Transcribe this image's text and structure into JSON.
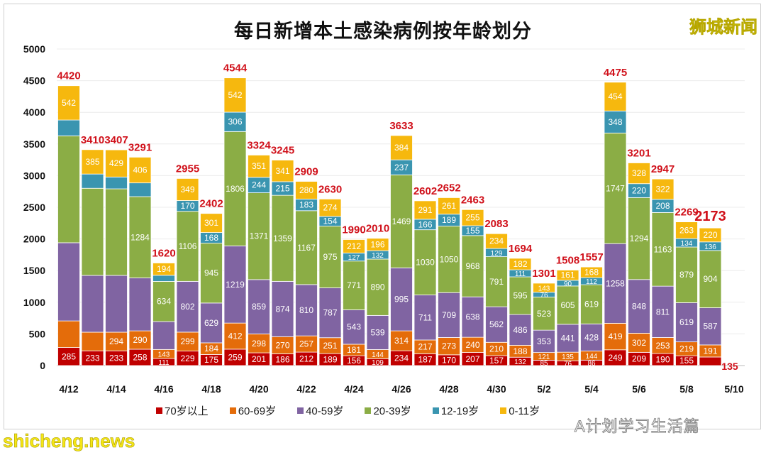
{
  "chart_data": {
    "type": "stacked-bar",
    "title": "每日新增本土感染病例按年龄划分",
    "categories": [
      "4/12",
      "4/13",
      "4/14",
      "4/15",
      "4/16",
      "4/17",
      "4/18",
      "4/19",
      "4/20",
      "4/21",
      "4/22",
      "4/23",
      "4/24",
      "4/25",
      "4/26",
      "4/27",
      "4/28",
      "4/29",
      "4/30",
      "5/1",
      "5/2",
      "5/3",
      "5/4",
      "5/5",
      "5/6",
      "5/7",
      "5/8",
      "5/9"
    ],
    "x_tick_labels": [
      "4/12",
      "4/14",
      "4/16",
      "4/18",
      "4/20",
      "4/22",
      "4/24",
      "4/26",
      "4/28",
      "4/30",
      "5/2",
      "5/4",
      "5/6",
      "5/8",
      "5/10"
    ],
    "y_ticks": [
      0,
      500,
      1000,
      1500,
      2000,
      2500,
      3000,
      3500,
      4000,
      4500,
      5000
    ],
    "ylim": [
      0,
      5000
    ],
    "grid": true,
    "legend_position": "bottom",
    "totals": [
      4420,
      3410,
      3407,
      3291,
      1620,
      2955,
      2402,
      4544,
      3324,
      3245,
      2909,
      2630,
      1990,
      2010,
      3633,
      2602,
      2652,
      2463,
      2083,
      1694,
      1301,
      1508,
      1557,
      4475,
      3201,
      2947,
      2269,
      2173
    ],
    "series": [
      {
        "name": "70岁以上",
        "color": "#c00000",
        "values": [
          285,
          233,
          233,
          258,
          111,
          229,
          175,
          259,
          201,
          186,
          212,
          189,
          156,
          109,
          234,
          187,
          170,
          207,
          157,
          132,
          85,
          76,
          86,
          249,
          209,
          190,
          155,
          135
        ],
        "unlabeled": []
      },
      {
        "name": "60-69岁",
        "color": "#e46c0a",
        "values": [
          420,
          294,
          294,
          290,
          143,
          299,
          184,
          412,
          298,
          270,
          257,
          251,
          181,
          144,
          314,
          217,
          273,
          240,
          210,
          188,
          121,
          135,
          144,
          419,
          302,
          253,
          219,
          191
        ],
        "unlabeled": [
          0,
          1
        ]
      },
      {
        "name": "40-59岁",
        "color": "#8064a2",
        "values": [
          1235,
          897,
          897,
          836,
          441,
          802,
          629,
          1219,
          859,
          874,
          810,
          787,
          543,
          539,
          995,
          711,
          709,
          638,
          562,
          486,
          353,
          441,
          428,
          1258,
          848,
          811,
          619,
          587
        ],
        "unlabeled": [
          0,
          1,
          2,
          3,
          4
        ]
      },
      {
        "name": "20-39岁",
        "color": "#8bad45",
        "values": [
          1688,
          1376,
          1367,
          1284,
          634,
          1106,
          945,
          1806,
          1371,
          1359,
          1167,
          975,
          771,
          890,
          1469,
          1030,
          1050,
          968,
          791,
          595,
          523,
          605,
          619,
          1747,
          1294,
          1163,
          879,
          904
        ],
        "unlabeled": [
          0,
          1,
          2
        ]
      },
      {
        "name": "12-19岁",
        "color": "#3a95b0",
        "values": [
          250,
          225,
          187,
          217,
          97,
          170,
          168,
          306,
          244,
          215,
          183,
          154,
          127,
          132,
          237,
          166,
          189,
          155,
          129,
          111,
          76,
          90,
          112,
          348,
          220,
          208,
          134,
          136
        ],
        "unlabeled": [
          0,
          1,
          2,
          3,
          4
        ]
      },
      {
        "name": "0-11岁",
        "color": "#f6b80e",
        "values": [
          542,
          385,
          429,
          406,
          194,
          349,
          301,
          542,
          351,
          341,
          280,
          274,
          212,
          196,
          384,
          291,
          261,
          255,
          234,
          182,
          143,
          161,
          168,
          454,
          328,
          322,
          263,
          220
        ],
        "unlabeled": []
      }
    ]
  },
  "watermarks": {
    "brand": "狮城新闻",
    "account": "A计划学习生活篇",
    "site": "shicheng.news"
  }
}
